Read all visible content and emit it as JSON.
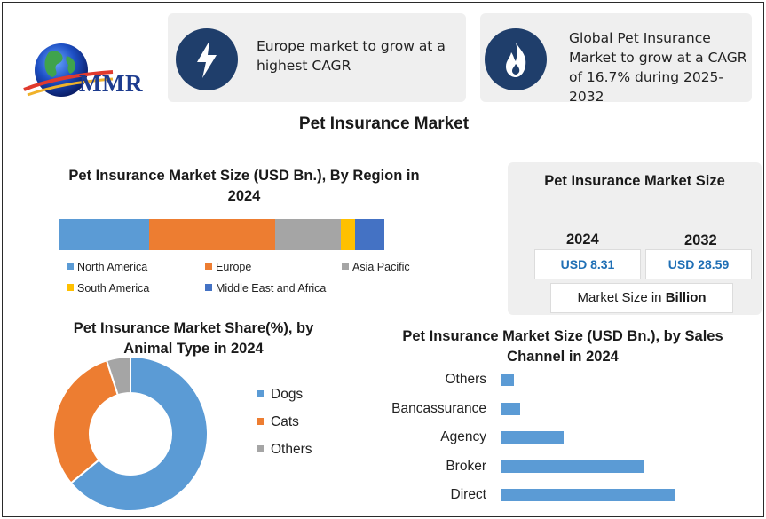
{
  "logo": {
    "text": "MMR"
  },
  "cards": [
    {
      "icon": "lightning-icon",
      "text": "Europe market to grow at a highest CAGR"
    },
    {
      "icon": "flame-icon",
      "text": "Global Pet Insurance Market to grow at a CAGR of 16.7% during 2025-2032"
    }
  ],
  "main_title": "Pet Insurance Market",
  "colors": {
    "dark_navy": "#1f3e6b",
    "blue": "#5b9bd5",
    "orange": "#ed7d31",
    "gray": "#a5a5a5",
    "yellow": "#ffc000",
    "royal_blue": "#4472c4",
    "value_blue": "#1f6fb5"
  },
  "market_size": {
    "title": "Pet Insurance Market Size",
    "year_a": "2024",
    "value_a": "USD 8.31",
    "year_b": "2032",
    "value_b": "USD 28.59",
    "unit_prefix": "Market Size in ",
    "unit_bold": "Billion"
  },
  "chart_data": [
    {
      "type": "bar",
      "orientation": "horizontal-stacked",
      "title": "Pet Insurance Market Size (USD Bn.), By Region in 2024",
      "series": [
        {
          "name": "North America",
          "value": 27.5,
          "color": "#5b9bd5"
        },
        {
          "name": "Europe",
          "value": 39,
          "color": "#ed7d31"
        },
        {
          "name": "Asia Pacific",
          "value": 20,
          "color": "#a5a5a5"
        },
        {
          "name": "South America",
          "value": 4.5,
          "color": "#ffc000"
        },
        {
          "name": "Middle East and Africa",
          "value": 9,
          "color": "#4472c4"
        }
      ],
      "legend": "bottom"
    },
    {
      "type": "pie",
      "style": "donut",
      "title": "Pet Insurance Market Share(%), by Animal Type in 2024",
      "categories": [
        "Dogs",
        "Cats",
        "Others"
      ],
      "values": [
        64,
        31,
        5
      ],
      "colors": [
        "#5b9bd5",
        "#ed7d31",
        "#a5a5a5"
      ],
      "legend": "right"
    },
    {
      "type": "bar",
      "orientation": "horizontal",
      "title": "Pet Insurance Market Size (USD Bn.), by Sales Channel in 2024",
      "categories": [
        "Others",
        "Bancassurance",
        "Agency",
        "Broker",
        "Direct"
      ],
      "values": [
        0.4,
        0.6,
        2.0,
        4.6,
        5.6
      ],
      "color": "#5b9bd5"
    }
  ]
}
